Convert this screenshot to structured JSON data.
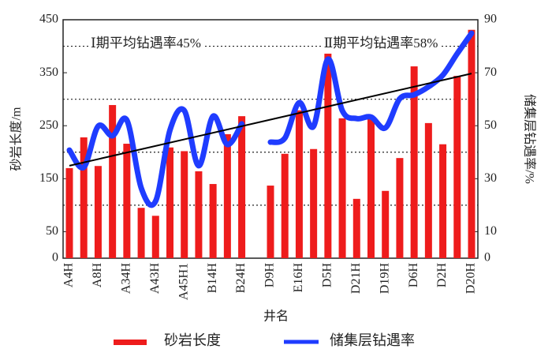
{
  "chart_data": {
    "type": "bar",
    "categories": [
      "A4H",
      null,
      "A8H",
      null,
      "A34H",
      null,
      "A43H",
      null,
      "A45H1",
      null,
      "B14H",
      null,
      "B24H",
      null,
      "D9H",
      null,
      "E16H",
      null,
      "D5H",
      null,
      "D21H",
      null,
      "D19H",
      null,
      "D6H",
      null,
      "D2H",
      null,
      "D20H"
    ],
    "series": [
      {
        "name": "砂岩长度",
        "color": "#ee1c1c",
        "values": [
          170,
          228,
          174,
          289,
          216,
          95,
          80,
          209,
          202,
          164,
          140,
          234,
          268,
          null,
          137,
          197,
          279,
          206,
          386,
          264,
          112,
          268,
          127,
          189,
          362,
          255,
          215,
          344,
          431
        ]
      },
      {
        "name": "储集层钻遇率",
        "color": "#1f3cff",
        "axis": "y2",
        "values": [
          40.8,
          34.3,
          49.8,
          46.2,
          52.1,
          26.5,
          21.5,
          48.3,
          55.7,
          34.9,
          53.6,
          42.9,
          50.7,
          null,
          43.8,
          45.3,
          58.7,
          49.8,
          75.1,
          55.7,
          52.7,
          53.3,
          49.2,
          60.2,
          61.7,
          64.7,
          69.1,
          77.2,
          84.9
        ]
      }
    ],
    "trend": {
      "color": "#000000",
      "values": [
        34.9,
        69.7
      ]
    },
    "ylim": [
      0,
      450
    ],
    "yticks": [
      0,
      50,
      150,
      250,
      350,
      450
    ],
    "grid_lines": [
      100,
      200,
      300,
      400
    ],
    "y2lim": [
      0,
      90
    ],
    "y2ticks": [
      0,
      10,
      30,
      50,
      70,
      90
    ],
    "xlabel": "井名",
    "ylabel": "砂岩长度/m",
    "y2label": "储集层钻遇率/%",
    "annotations": [
      "Ⅰ期平均钻遇率45%",
      "Ⅱ期平均钻遇率58%"
    ]
  }
}
